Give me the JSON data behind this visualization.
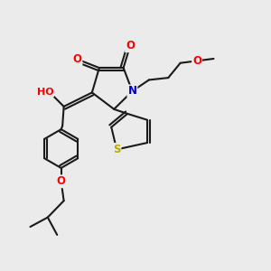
{
  "background_color": "#ebebeb",
  "bond_color": "#1a1a1a",
  "atom_colors": {
    "O": "#ff0000",
    "N": "#0000cc",
    "S": "#bbaa00",
    "H": "#888888",
    "C": "#1a1a1a"
  },
  "bond_width": 1.5,
  "fig_width": 3.0,
  "fig_height": 3.0,
  "dpi": 100,
  "font_size": 8.5
}
